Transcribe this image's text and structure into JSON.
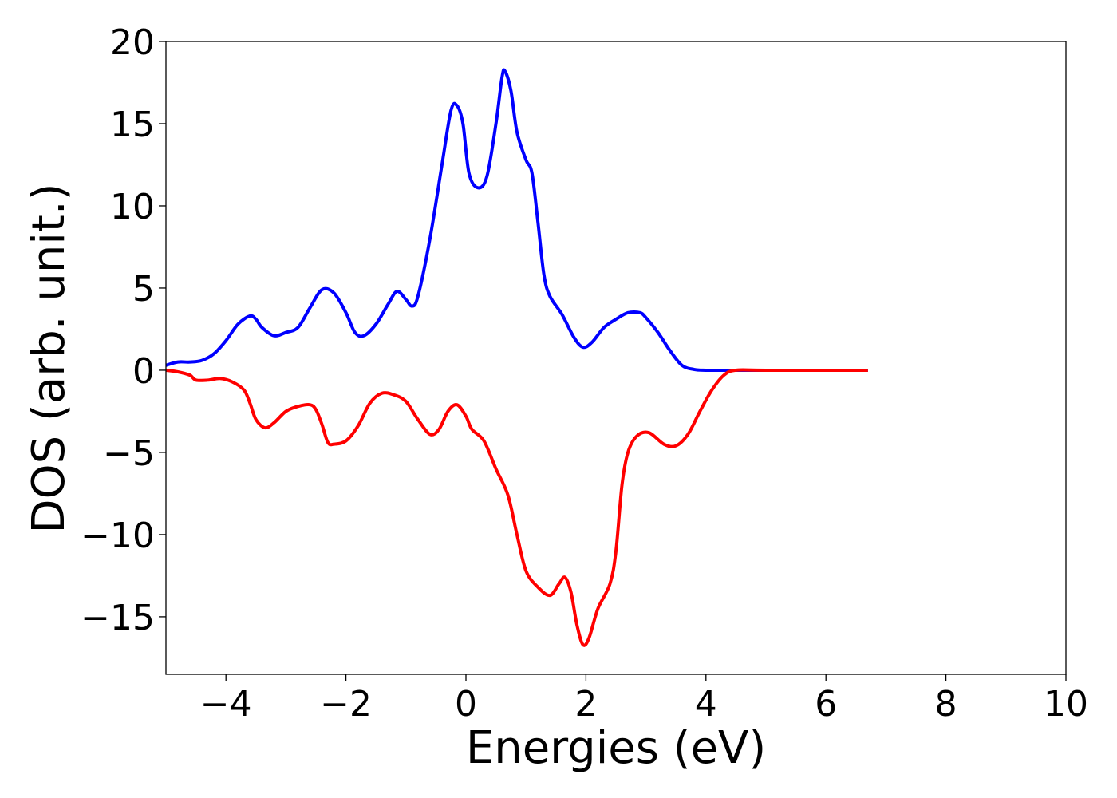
{
  "chart_data": {
    "type": "line",
    "title": "",
    "xlabel": "Energies (eV)",
    "ylabel": "DOS (arb. unit.)",
    "xlim": [
      -5,
      10
    ],
    "ylim": [
      -18.5,
      20
    ],
    "grid": false,
    "legend": "none",
    "x_ticks": [
      -4,
      -2,
      0,
      2,
      4,
      6,
      8,
      10
    ],
    "x_tick_labels": [
      "−4",
      "−2",
      "0",
      "2",
      "4",
      "6",
      "8",
      "10"
    ],
    "y_ticks": [
      20,
      15,
      10,
      5,
      0,
      -5,
      -10,
      -15
    ],
    "y_tick_labels": [
      "20",
      "15",
      "10",
      "5",
      "0",
      "−5",
      "−10",
      "−15"
    ],
    "series": [
      {
        "color": "#0000ff",
        "points": [
          [
            -5.0,
            0.3
          ],
          [
            -4.8,
            0.5
          ],
          [
            -4.6,
            0.5
          ],
          [
            -4.4,
            0.6
          ],
          [
            -4.2,
            1.0
          ],
          [
            -4.0,
            1.8
          ],
          [
            -3.8,
            2.8
          ],
          [
            -3.6,
            3.3
          ],
          [
            -3.5,
            3.1
          ],
          [
            -3.4,
            2.6
          ],
          [
            -3.2,
            2.1
          ],
          [
            -3.0,
            2.3
          ],
          [
            -2.8,
            2.6
          ],
          [
            -2.6,
            3.8
          ],
          [
            -2.4,
            4.9
          ],
          [
            -2.2,
            4.7
          ],
          [
            -2.0,
            3.5
          ],
          [
            -1.85,
            2.3
          ],
          [
            -1.7,
            2.1
          ],
          [
            -1.5,
            2.8
          ],
          [
            -1.3,
            4.0
          ],
          [
            -1.15,
            4.8
          ],
          [
            -1.0,
            4.3
          ],
          [
            -0.9,
            3.9
          ],
          [
            -0.8,
            4.5
          ],
          [
            -0.6,
            8.0
          ],
          [
            -0.4,
            12.5
          ],
          [
            -0.25,
            15.8
          ],
          [
            -0.15,
            16.1
          ],
          [
            -0.05,
            15.0
          ],
          [
            0.05,
            12.0
          ],
          [
            0.2,
            11.1
          ],
          [
            0.35,
            11.8
          ],
          [
            0.5,
            15.0
          ],
          [
            0.6,
            17.8
          ],
          [
            0.65,
            18.2
          ],
          [
            0.75,
            17.0
          ],
          [
            0.85,
            14.5
          ],
          [
            1.0,
            12.8
          ],
          [
            1.1,
            12.0
          ],
          [
            1.2,
            9.0
          ],
          [
            1.3,
            5.8
          ],
          [
            1.4,
            4.5
          ],
          [
            1.6,
            3.4
          ],
          [
            1.8,
            2.0
          ],
          [
            1.95,
            1.4
          ],
          [
            2.1,
            1.7
          ],
          [
            2.3,
            2.6
          ],
          [
            2.5,
            3.1
          ],
          [
            2.7,
            3.5
          ],
          [
            2.9,
            3.5
          ],
          [
            3.0,
            3.2
          ],
          [
            3.2,
            2.3
          ],
          [
            3.4,
            1.2
          ],
          [
            3.6,
            0.3
          ],
          [
            3.8,
            0.05
          ],
          [
            4.0,
            0.0
          ],
          [
            4.5,
            0.0
          ],
          [
            5.0,
            0.0
          ],
          [
            6.7,
            0.0
          ]
        ]
      },
      {
        "color": "#ff0000",
        "points": [
          [
            -5.0,
            0.0
          ],
          [
            -4.8,
            -0.1
          ],
          [
            -4.6,
            -0.3
          ],
          [
            -4.5,
            -0.6
          ],
          [
            -4.3,
            -0.6
          ],
          [
            -4.1,
            -0.5
          ],
          [
            -3.9,
            -0.7
          ],
          [
            -3.7,
            -1.2
          ],
          [
            -3.6,
            -2.0
          ],
          [
            -3.5,
            -3.0
          ],
          [
            -3.35,
            -3.5
          ],
          [
            -3.2,
            -3.2
          ],
          [
            -3.0,
            -2.5
          ],
          [
            -2.8,
            -2.2
          ],
          [
            -2.6,
            -2.1
          ],
          [
            -2.5,
            -2.4
          ],
          [
            -2.4,
            -3.3
          ],
          [
            -2.3,
            -4.4
          ],
          [
            -2.2,
            -4.5
          ],
          [
            -2.0,
            -4.3
          ],
          [
            -1.8,
            -3.4
          ],
          [
            -1.6,
            -2.0
          ],
          [
            -1.4,
            -1.4
          ],
          [
            -1.2,
            -1.5
          ],
          [
            -1.0,
            -1.9
          ],
          [
            -0.8,
            -3.0
          ],
          [
            -0.6,
            -3.9
          ],
          [
            -0.45,
            -3.6
          ],
          [
            -0.3,
            -2.5
          ],
          [
            -0.15,
            -2.1
          ],
          [
            0.0,
            -2.8
          ],
          [
            0.1,
            -3.6
          ],
          [
            0.3,
            -4.3
          ],
          [
            0.5,
            -6.0
          ],
          [
            0.7,
            -7.6
          ],
          [
            0.85,
            -10.0
          ],
          [
            1.0,
            -12.2
          ],
          [
            1.2,
            -13.2
          ],
          [
            1.4,
            -13.7
          ],
          [
            1.55,
            -13.0
          ],
          [
            1.65,
            -12.6
          ],
          [
            1.75,
            -13.5
          ],
          [
            1.85,
            -15.5
          ],
          [
            1.95,
            -16.7
          ],
          [
            2.05,
            -16.3
          ],
          [
            2.2,
            -14.5
          ],
          [
            2.4,
            -13.0
          ],
          [
            2.5,
            -11.0
          ],
          [
            2.6,
            -7.0
          ],
          [
            2.7,
            -5.0
          ],
          [
            2.85,
            -4.0
          ],
          [
            3.05,
            -3.8
          ],
          [
            3.3,
            -4.5
          ],
          [
            3.5,
            -4.6
          ],
          [
            3.7,
            -3.9
          ],
          [
            3.9,
            -2.5
          ],
          [
            4.1,
            -1.2
          ],
          [
            4.3,
            -0.3
          ],
          [
            4.5,
            0.0
          ],
          [
            5.0,
            0.0
          ],
          [
            6.7,
            0.0
          ]
        ]
      }
    ]
  }
}
